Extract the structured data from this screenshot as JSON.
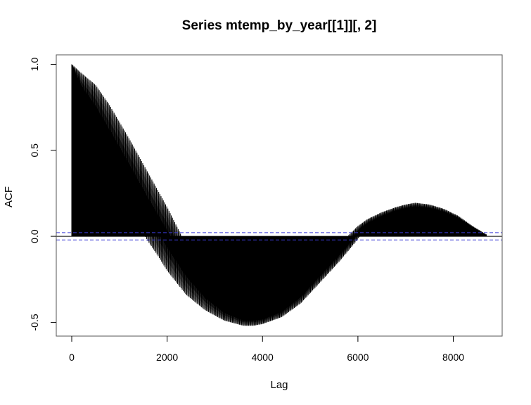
{
  "chart_data": {
    "type": "line",
    "title": "Series  mtemp_by_year[[1]][, 2]",
    "xlabel": "Lag",
    "ylabel": "ACF",
    "xlim": [
      -336,
      8700
    ],
    "ylim": [
      -0.58,
      1.055
    ],
    "xticks": [
      0,
      2000,
      4000,
      6000,
      8000
    ],
    "xtick_labels": [
      "0",
      "2000",
      "4000",
      "6000",
      "8000"
    ],
    "yticks": [
      -0.5,
      0.0,
      0.5,
      1.0
    ],
    "ytick_labels": [
      "-0.5",
      "0.0",
      "0.5",
      "1.0"
    ],
    "confidence_limit": 0.0212,
    "zero_line": 0,
    "series": [
      {
        "lag_max": 8700,
        "lag_step": 1,
        "daily_period": 24,
        "upper_envelope": {
          "x": [
            0,
            200,
            500,
            800,
            1200,
            1500,
            1800,
            2000,
            2200,
            2400,
            2800,
            3200,
            3600,
            4000,
            4400,
            4800,
            5200,
            5600,
            6000,
            6200,
            6500,
            6800,
            7000,
            7200,
            7500,
            7800,
            8100,
            8400,
            8700
          ],
          "y": [
            1.0,
            0.95,
            0.88,
            0.76,
            0.57,
            0.42,
            0.27,
            0.17,
            0.06,
            -0.05,
            -0.24,
            -0.37,
            -0.44,
            -0.44,
            -0.39,
            -0.29,
            -0.17,
            -0.05,
            0.06,
            0.1,
            0.14,
            0.17,
            0.185,
            0.195,
            0.185,
            0.16,
            0.12,
            0.06,
            0.01
          ]
        },
        "lower_envelope": {
          "x": [
            0,
            200,
            500,
            800,
            1000,
            1200,
            1400,
            1600,
            1800,
            2000,
            2400,
            2800,
            3200,
            3600,
            3800,
            4000,
            4400,
            4800,
            5200,
            5600,
            5900,
            6100,
            6400,
            6800,
            7200,
            7600,
            8000,
            8400,
            8700
          ],
          "y": [
            1.0,
            0.75,
            0.55,
            0.37,
            0.27,
            0.17,
            0.07,
            -0.03,
            -0.11,
            -0.2,
            -0.34,
            -0.43,
            -0.49,
            -0.52,
            -0.52,
            -0.51,
            -0.47,
            -0.39,
            -0.27,
            -0.15,
            -0.05,
            0.02,
            0.07,
            0.12,
            0.14,
            0.13,
            0.1,
            0.05,
            0.0
          ]
        }
      }
    ]
  }
}
